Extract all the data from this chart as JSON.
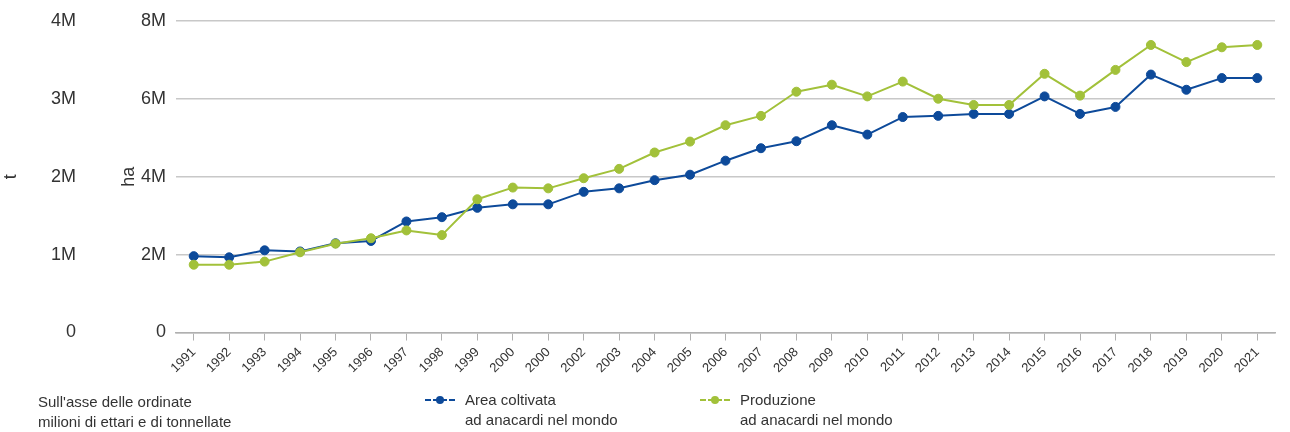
{
  "chart_data": {
    "type": "line",
    "categories": [
      "1991",
      "1992",
      "1993",
      "1994",
      "1995",
      "1996",
      "1997",
      "1998",
      "1999",
      "2000",
      "2000",
      "2002",
      "2003",
      "2004",
      "2005",
      "2006",
      "2007",
      "2008",
      "2009",
      "2010",
      "2011",
      "2012",
      "2013",
      "2014",
      "2015",
      "2016",
      "2017",
      "2018",
      "2019",
      "2020",
      "2021"
    ],
    "series": [
      {
        "name": "Area coltivata\nad anacardi nel mondo",
        "color": "#0d4a9a",
        "axis": "y",
        "values": [
          1960000,
          1930000,
          2110000,
          2080000,
          2290000,
          2350000,
          2850000,
          2960000,
          3200000,
          3290000,
          3290000,
          3610000,
          3700000,
          3910000,
          4050000,
          4410000,
          4730000,
          4910000,
          5320000,
          5080000,
          5530000,
          5560000,
          5610000,
          5610000,
          6060000,
          5610000,
          5790000,
          6620000,
          6230000,
          6530000,
          6530000
        ]
      },
      {
        "name": "Produzione\nad anacardi nel mondo",
        "color": "#a2c13a",
        "axis": "y2",
        "values": [
          870000,
          870000,
          910000,
          1030000,
          1140000,
          1210000,
          1310000,
          1250000,
          1710000,
          1860000,
          1850000,
          1980000,
          2100000,
          2310000,
          2450000,
          2660000,
          2780000,
          3090000,
          3180000,
          3030000,
          3220000,
          3000000,
          2920000,
          2920000,
          3320000,
          3040000,
          3370000,
          3690000,
          3470000,
          3660000,
          3690000
        ]
      }
    ],
    "ylabel": "ha",
    "y2label": "t",
    "ylim": [
      0,
      8000000
    ],
    "yticks": [
      0,
      {
        "value": 2000000,
        "label": "2M"
      },
      {
        "value": 4000000,
        "label": "4M"
      },
      {
        "value": 6000000,
        "label": "6M"
      },
      {
        "value": 8000000,
        "label": "8M"
      }
    ],
    "y2lim": [
      0,
      4000000
    ],
    "y2ticks": [
      0,
      {
        "value": 1000000,
        "label": "1M"
      },
      {
        "value": 2000000,
        "label": "2M"
      },
      {
        "value": 3000000,
        "label": "3M"
      },
      {
        "value": 4000000,
        "label": "4M"
      }
    ],
    "grid": "y",
    "legend": "bottom",
    "marker": "circle",
    "line_style": "solid",
    "annotations": [
      "Sull'asse delle ordinate\nmilioni di ettari e di tonnellate"
    ]
  }
}
